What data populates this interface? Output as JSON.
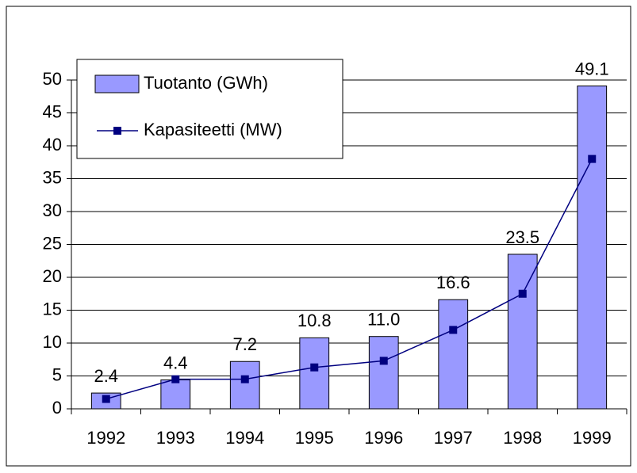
{
  "chart_data": {
    "type": "bar",
    "categories": [
      "1992",
      "1993",
      "1994",
      "1995",
      "1996",
      "1997",
      "1998",
      "1999"
    ],
    "series": [
      {
        "name": "Tuotanto (GWh)",
        "type": "bar",
        "color": "#9999ff",
        "values": [
          2.4,
          4.4,
          7.2,
          10.8,
          11.0,
          16.6,
          23.5,
          49.1
        ],
        "value_labels": [
          "2.4",
          "4.4",
          "7.2",
          "10.8",
          "11.0",
          "16.6",
          "23.5",
          "49.1"
        ]
      },
      {
        "name": "Kapasiteetti (MW)",
        "type": "line",
        "color": "#000080",
        "values": [
          1.5,
          4.5,
          4.5,
          6.3,
          7.3,
          12,
          17.5,
          38
        ]
      }
    ],
    "ylim": [
      0,
      50
    ],
    "yticks": [
      0,
      5,
      10,
      15,
      20,
      25,
      30,
      35,
      40,
      45,
      50
    ],
    "grid": true,
    "legend": "top-left"
  }
}
